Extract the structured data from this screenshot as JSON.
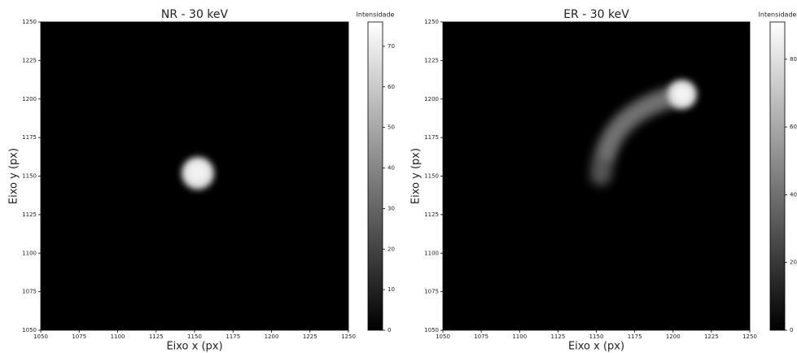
{
  "chart_data": [
    {
      "type": "heatmap",
      "title": "NR - 30 keV",
      "xlabel": "Eixo x (px)",
      "ylabel": "Eixo y (px)",
      "xlim": [
        1050,
        1250
      ],
      "ylim": [
        1050,
        1250
      ],
      "xticks": [
        1050,
        1075,
        1100,
        1125,
        1150,
        1175,
        1200,
        1225,
        1250
      ],
      "yticks": [
        1050,
        1075,
        1100,
        1125,
        1150,
        1175,
        1200,
        1225,
        1250
      ],
      "colorbar": {
        "label": "Intensidade",
        "lim": [
          0,
          76
        ],
        "ticks": [
          0,
          10,
          20,
          30,
          40,
          50,
          60,
          70
        ]
      }
    },
    {
      "type": "heatmap",
      "title": "ER - 30 keV",
      "xlabel": "Eixo x (px)",
      "ylabel": "Eixo y (px)",
      "xlim": [
        1050,
        1250
      ],
      "ylim": [
        1050,
        1250
      ],
      "xticks": [
        1050,
        1075,
        1100,
        1125,
        1150,
        1175,
        1200,
        1225,
        1250
      ],
      "yticks": [
        1050,
        1075,
        1100,
        1125,
        1150,
        1175,
        1200,
        1225,
        1250
      ],
      "colorbar": {
        "label": "Intensidade",
        "lim": [
          0,
          91
        ],
        "ticks": [
          0,
          20,
          40,
          60,
          80
        ]
      }
    }
  ]
}
